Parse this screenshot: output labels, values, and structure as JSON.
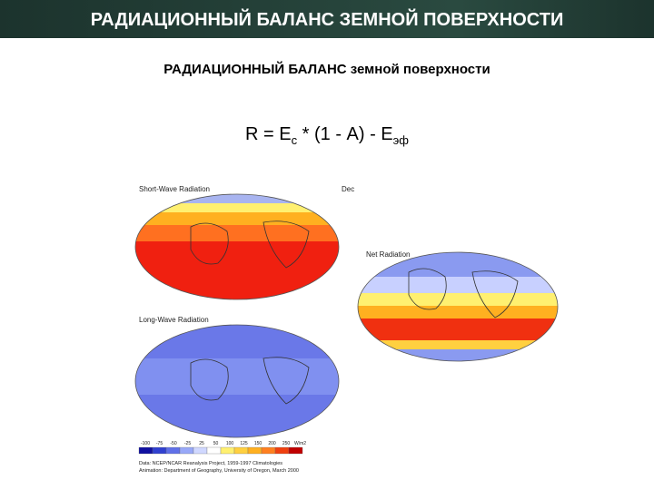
{
  "header": {
    "title": "РАДИАЦИОННЫЙ БАЛАНС ЗЕМНОЙ ПОВЕРХНОСТИ"
  },
  "subtitle": "РАДИАЦИОННЫЙ БАЛАНС земной поверхности",
  "formula": {
    "part1": "R = E",
    "sub1": "с",
    "part2": " * (1 - A) - E",
    "sub2": "эф"
  },
  "figure": {
    "short_wave_label": "Short-Wave Radiation",
    "month": "Dec",
    "net_label": "Net Radiation",
    "long_wave_label": "Long-Wave Radiation",
    "scale_labels": [
      "-100",
      "-75",
      "-50",
      "-25",
      "25",
      "50",
      "100",
      "125",
      "150",
      "200",
      "250",
      "W/m2"
    ],
    "credit_data": "Data: NCEP/NCAR Reanalysis Project, 1959-1997 Climatologies",
    "credit_animation": "Animation: Department of Geography, University of Oregon, March 2000"
  }
}
